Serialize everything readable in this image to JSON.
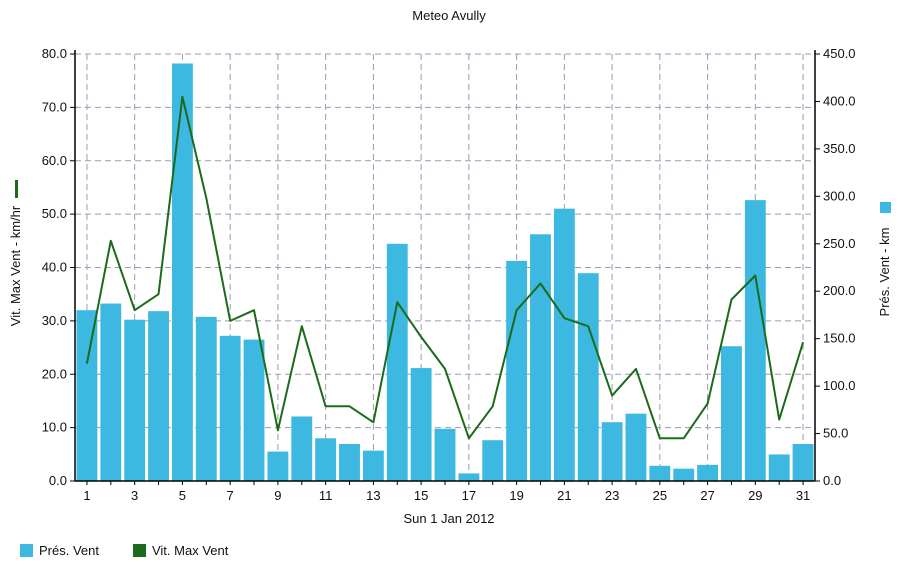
{
  "chart_data": {
    "type": "bar",
    "title": "Meteo  Avully",
    "xlabel": "Sun 1 Jan 2012",
    "ylabel_left": "Vit. Max Vent - km/hr",
    "ylabel_right": "Prés. Vent - km",
    "x_ticks": [
      "1",
      "3",
      "5",
      "7",
      "9",
      "11",
      "13",
      "15",
      "17",
      "19",
      "21",
      "23",
      "25",
      "27",
      "29",
      "31"
    ],
    "y_left": {
      "min": 0,
      "max": 80,
      "ticks": [
        "0.0",
        "10.0",
        "20.0",
        "30.0",
        "40.0",
        "50.0",
        "60.0",
        "70.0",
        "80.0"
      ]
    },
    "y_right": {
      "min": 0,
      "max": 450,
      "ticks": [
        "0.0",
        "50.0",
        "100.0",
        "150.0",
        "200.0",
        "250.0",
        "300.0",
        "350.0",
        "400.0",
        "450.0"
      ]
    },
    "days": [
      1,
      2,
      3,
      4,
      5,
      6,
      7,
      8,
      9,
      10,
      11,
      12,
      13,
      14,
      15,
      16,
      17,
      18,
      19,
      20,
      21,
      22,
      23,
      24,
      25,
      26,
      27,
      28,
      29,
      30,
      31
    ],
    "grid": true,
    "legend_position": "bottom-left",
    "series": [
      {
        "name": "Prés. Vent",
        "type": "bar",
        "axis": "right",
        "color": "#3db8e0",
        "values": [
          180,
          187,
          170,
          179,
          440,
          173,
          153,
          149,
          31,
          68,
          45,
          39,
          32,
          250,
          119,
          55,
          8,
          43,
          232,
          260,
          287,
          219,
          62,
          71,
          16,
          13,
          17,
          142,
          296,
          28,
          39
        ]
      },
      {
        "name": "Vit. Max Vent",
        "type": "line",
        "axis": "left",
        "color": "#1a6b1a",
        "values": [
          22,
          45,
          32,
          35,
          72,
          53,
          30,
          32,
          9.5,
          29,
          14,
          14,
          11,
          33.5,
          27,
          21,
          8,
          14,
          32,
          37,
          30.5,
          29,
          16,
          21,
          8,
          8,
          14.5,
          34,
          38.5,
          11.5,
          26
        ]
      }
    ],
    "legend": [
      {
        "label": "Prés. Vent",
        "color": "#3db8e0"
      },
      {
        "label": "Vit. Max Vent",
        "color": "#1a6b1a"
      }
    ]
  }
}
